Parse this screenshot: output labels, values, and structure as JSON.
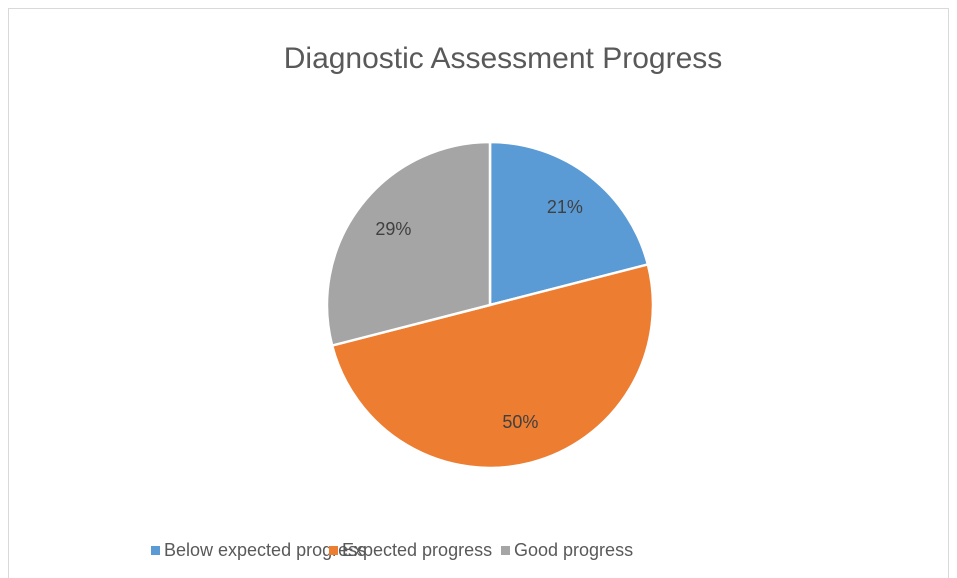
{
  "chart_data": {
    "type": "pie",
    "title": "Diagnostic Assessment Progress",
    "categories": [
      "Below expected progress",
      "Expected progress",
      "Good progress"
    ],
    "values": [
      21,
      50,
      29
    ],
    "value_labels": [
      "21%",
      "50%",
      "29%"
    ],
    "colors": [
      "#5b9bd5",
      "#ed7d31",
      "#a5a5a5"
    ],
    "legend": "bottom"
  }
}
